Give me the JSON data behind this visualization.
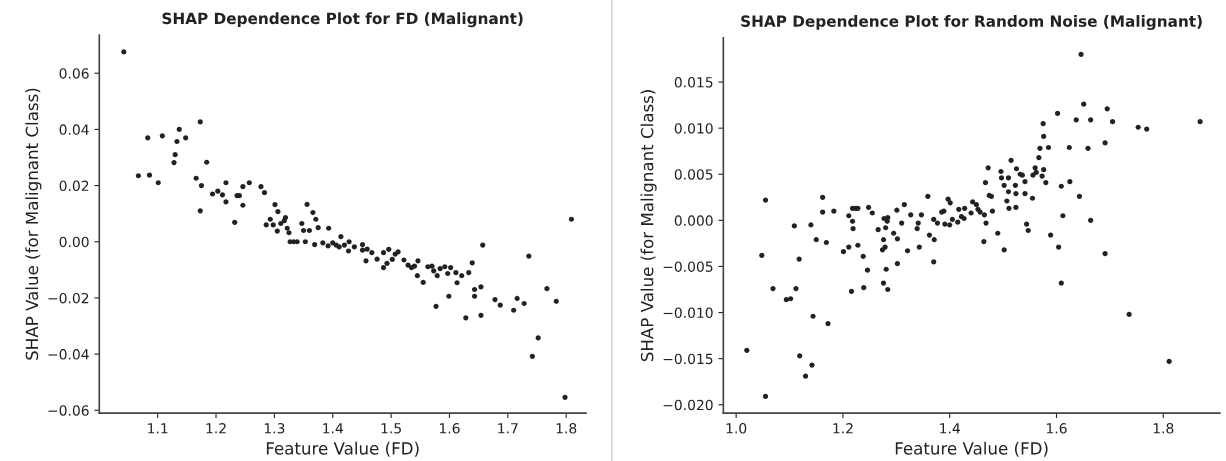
{
  "chart_data": [
    {
      "type": "scatter",
      "title": "SHAP Dependence Plot for FD (Malignant)",
      "xlabel": "Feature Value (FD)",
      "ylabel": "SHAP Value (for Malignant Class)",
      "marker": "circle",
      "grid": false,
      "xlim": [
        1.0,
        1.834
      ],
      "ylim": [
        -0.061,
        0.0736
      ],
      "xticks": [
        1.1,
        1.2,
        1.3,
        1.4,
        1.5,
        1.6,
        1.7,
        1.8
      ],
      "yticks": [
        {
          "value": -0.06,
          "label": "−0.06"
        },
        {
          "value": -0.04,
          "label": "−0.04"
        },
        {
          "value": -0.02,
          "label": "−0.02"
        },
        {
          "value": 0,
          "label": "0.00"
        },
        {
          "value": 0.02,
          "label": "0.02"
        },
        {
          "value": 0.04,
          "label": "0.04"
        },
        {
          "value": 0.06,
          "label": "0.06"
        }
      ],
      "series": [
        {
          "color": "#222222",
          "x": [
            1.042,
            1.067,
            1.083,
            1.086,
            1.101,
            1.108,
            1.128,
            1.13,
            1.133,
            1.137,
            1.148,
            1.166,
            1.173,
            1.175,
            1.173,
            1.184,
            1.194,
            1.203,
            1.211,
            1.217,
            1.217,
            1.232,
            1.236,
            1.24,
            1.246,
            1.246,
            1.257,
            1.277,
            1.283,
            1.286,
            1.293,
            1.301,
            1.298,
            1.306,
            1.305,
            1.311,
            1.317,
            1.319,
            1.322,
            1.325,
            1.327,
            1.333,
            1.339,
            1.347,
            1.35,
            1.353,
            1.356,
            1.36,
            1.366,
            1.371,
            1.375,
            1.369,
            1.383,
            1.393,
            1.392,
            1.4,
            1.406,
            1.414,
            1.411,
            1.42,
            1.428,
            1.427,
            1.437,
            1.451,
            1.451,
            1.459,
            1.457,
            1.467,
            1.476,
            1.487,
            1.487,
            1.493,
            1.496,
            1.502,
            1.507,
            1.512,
            1.522,
            1.529,
            1.535,
            1.54,
            1.546,
            1.545,
            1.555,
            1.563,
            1.57,
            1.573,
            1.579,
            1.577,
            1.584,
            1.592,
            1.597,
            1.602,
            1.599,
            1.611,
            1.613,
            1.621,
            1.628,
            1.633,
            1.639,
            1.643,
            1.643,
            1.654,
            1.654,
            1.657,
            1.678,
            1.687,
            1.71,
            1.716,
            1.728,
            1.736,
            1.742,
            1.752,
            1.767,
            1.783,
            1.798,
            1.809
          ],
          "values": [
            0.0676,
            0.0235,
            0.037,
            0.0237,
            0.021,
            0.0377,
            0.0282,
            0.031,
            0.0357,
            0.04,
            0.037,
            0.0226,
            0.0427,
            0.02,
            0.011,
            0.0283,
            0.017,
            0.018,
            0.0167,
            0.021,
            0.0142,
            0.0069,
            0.0164,
            0.0164,
            0.0196,
            0.013,
            0.021,
            0.0196,
            0.0175,
            0.006,
            0.008,
            0.0132,
            0.006,
            0.0107,
            0.0038,
            0.0065,
            0.0075,
            0.0086,
            0.0048,
            0.0032,
            0.0,
            0.0,
            0.0,
            0.0065,
            0.004,
            0.0,
            0.0133,
            0.004,
            0.0104,
            0.008,
            0.005,
            -0.001,
            -0.0004,
            0.0048,
            -0.0015,
            -0.0004,
            -0.0012,
            0.0018,
            -0.0018,
            -0.0012,
            0.0,
            -0.0033,
            -0.0018,
            -0.001,
            -0.003,
            -0.0026,
            -0.0068,
            -0.0039,
            -0.0062,
            -0.0039,
            -0.0092,
            -0.0077,
            -0.0027,
            -0.0063,
            -0.0044,
            -0.0036,
            -0.0065,
            -0.0083,
            -0.0092,
            -0.0087,
            -0.0068,
            -0.0121,
            -0.0145,
            -0.0089,
            -0.0087,
            -0.0104,
            -0.0121,
            -0.023,
            -0.0096,
            -0.0089,
            -0.0113,
            -0.0092,
            -0.0194,
            -0.011,
            -0.0146,
            -0.0121,
            -0.0271,
            -0.011,
            -0.0075,
            -0.017,
            -0.0194,
            -0.0161,
            -0.0262,
            -0.0012,
            -0.0206,
            -0.0226,
            -0.0244,
            -0.0202,
            -0.022,
            -0.0051,
            -0.0408,
            -0.0342,
            -0.0167,
            -0.0212,
            -0.0554,
            0.008
          ]
        }
      ]
    },
    {
      "type": "scatter",
      "title": "SHAP Dependence Plot for Random Noise (Malignant)",
      "xlabel": "Feature Value (FD)",
      "ylabel": "SHAP Value (for Malignant Class)",
      "marker": "circle",
      "grid": false,
      "xlim": [
        0.976,
        1.906
      ],
      "ylim": [
        -0.0209,
        0.0198
      ],
      "xticks": [
        {
          "value": 1.0,
          "label": "1.0"
        },
        1.2,
        1.4,
        1.6,
        1.8
      ],
      "yticks": [
        {
          "value": -0.02,
          "label": "−0.020"
        },
        {
          "value": -0.015,
          "label": "−0.015"
        },
        {
          "value": -0.01,
          "label": "−0.010"
        },
        {
          "value": -0.005,
          "label": "−0.005"
        },
        {
          "value": 0,
          "label": "0.000"
        },
        {
          "value": 0.005,
          "label": "0.005"
        },
        {
          "value": 0.01,
          "label": "0.010"
        },
        {
          "value": 0.015,
          "label": "0.015"
        }
      ],
      "series": [
        {
          "color": "#222222",
          "x": [
            1.02,
            1.048,
            1.055,
            1.055,
            1.069,
            1.094,
            1.102,
            1.109,
            1.112,
            1.118,
            1.119,
            1.13,
            1.14,
            1.142,
            1.144,
            1.15,
            1.162,
            1.162,
            1.169,
            1.172,
            1.183,
            1.201,
            1.211,
            1.211,
            1.216,
            1.218,
            1.219,
            1.218,
            1.224,
            1.228,
            1.228,
            1.238,
            1.239,
            1.246,
            1.248,
            1.255,
            1.266,
            1.274,
            1.276,
            1.277,
            1.279,
            1.276,
            1.28,
            1.281,
            1.283,
            1.284,
            1.284,
            1.295,
            1.301,
            1.302,
            1.302,
            1.31,
            1.315,
            1.321,
            1.327,
            1.339,
            1.341,
            1.343,
            1.347,
            1.359,
            1.362,
            1.37,
            1.37,
            1.371,
            1.377,
            1.385,
            1.391,
            1.389,
            1.397,
            1.4,
            1.401,
            1.405,
            1.415,
            1.417,
            1.422,
            1.427,
            1.428,
            1.44,
            1.443,
            1.45,
            1.453,
            1.457,
            1.464,
            1.465,
            1.467,
            1.468,
            1.472,
            1.474,
            1.478,
            1.48,
            1.49,
            1.496,
            1.497,
            1.502,
            1.502,
            1.507,
            1.51,
            1.51,
            1.511,
            1.515,
            1.523,
            1.524,
            1.524,
            1.525,
            1.532,
            1.536,
            1.541,
            1.541,
            1.544,
            1.547,
            1.555,
            1.556,
            1.56,
            1.562,
            1.567,
            1.569,
            1.573,
            1.576,
            1.575,
            1.576,
            1.58,
            1.585,
            1.589,
            1.602,
            1.604,
            1.609,
            1.609,
            1.612,
            1.624,
            1.625,
            1.637,
            1.643,
            1.646,
            1.651,
            1.659,
            1.664,
            1.664,
            1.691,
            1.691,
            1.695,
            1.705,
            1.736,
            1.753,
            1.769,
            1.811,
            1.869
          ],
          "values": [
            -0.0141,
            -0.0038,
            0.0022,
            -0.0191,
            -0.0074,
            -0.0086,
            -0.0085,
            -0.0006,
            -0.0074,
            -0.0042,
            -0.0147,
            -0.0169,
            -0.0005,
            -0.0157,
            -0.0104,
            -0.0021,
            0.0025,
            0.0009,
            -0.0024,
            -0.0112,
            0.001,
            -0.0034,
            0.0005,
            -0.0029,
            -0.0077,
            -0.0001,
            -0.0009,
            0.0013,
            0.0013,
            0.0013,
            -0.0027,
            -0.0039,
            -0.0073,
            -0.0054,
            0.0014,
            0.0008,
            -0.001,
            -0.0032,
            -0.0021,
            0.0002,
            -0.0029,
            -0.0068,
            -0.0008,
            -0.0053,
            -0.0001,
            0.0003,
            -0.0075,
            -0.0014,
            0.0011,
            -0.002,
            -0.0047,
            -0.0003,
            0.0017,
            -0.0033,
            0.0006,
            -0.0009,
            -0.0003,
            -0.0029,
            0.0006,
            0.0026,
            -0.0016,
            0.0001,
            -0.0045,
            -0.0021,
            -0.0003,
            0.0009,
            -0.0004,
            0.001,
            0.0023,
            -0.0005,
            0.0019,
            0.0001,
            -0.0002,
            0.0012,
            0.0004,
            0.0002,
            0.0013,
            0.0008,
            0.002,
            0.0017,
            0.0012,
            0.0009,
            -0.0023,
            0.0006,
            0.0041,
            -0.0003,
            0.0057,
            0.0027,
            0.0026,
            0.001,
            -0.0014,
            0.0053,
            0.0046,
            0.0038,
            -0.0032,
            0.0021,
            0.0046,
            0.0031,
            0.0013,
            0.0065,
            0.0038,
            0.0029,
            0.0014,
            0.0056,
            0.005,
            0.0049,
            0.0042,
            0.0029,
            -0.0004,
            -0.0011,
            0.0024,
            0.0049,
            0.0057,
            0.0052,
            0.0068,
            0.0078,
            0.0048,
            0.0091,
            0.0105,
            0.0055,
            0.0041,
            0.0079,
            -0.0016,
            0.0116,
            -0.0029,
            0.0037,
            -0.0068,
            0.0005,
            0.0079,
            0.0042,
            0.0109,
            0.0026,
            0.018,
            0.0126,
            0.0078,
            0.0109,
            0.0,
            0.0084,
            -0.0036,
            0.0121,
            0.0107,
            -0.0102,
            0.0101,
            0.0099,
            -0.0153,
            0.0107
          ]
        }
      ]
    }
  ]
}
